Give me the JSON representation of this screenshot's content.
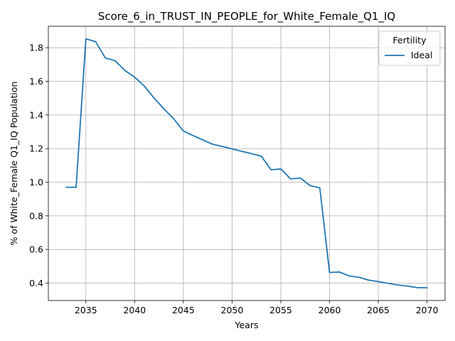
{
  "chart_data": {
    "type": "line",
    "title": "Score_6_in_TRUST_IN_PEOPLE_for_White_Female_Q1_IQ",
    "xlabel": "Years",
    "ylabel": "% of White_Female Q1_IQ Population",
    "xlim": [
      2031.15,
      2071.85
    ],
    "ylim": [
      0.2965,
      1.9275
    ],
    "xticks": [
      2035,
      2040,
      2045,
      2050,
      2055,
      2060,
      2065,
      2070
    ],
    "yticks": [
      0.4,
      0.6,
      0.8,
      1.0,
      1.2,
      1.4,
      1.6,
      1.8
    ],
    "grid": true,
    "legend": {
      "title": "Fertility",
      "placement": "upper right"
    },
    "series": [
      {
        "name": "Ideal",
        "color": "#1f77b4",
        "x": [
          2033,
          2034,
          2035,
          2036,
          2037,
          2038,
          2039,
          2040,
          2041,
          2042,
          2043,
          2044,
          2045,
          2046,
          2047,
          2048,
          2049,
          2050,
          2051,
          2052,
          2053,
          2054,
          2055,
          2056,
          2057,
          2058,
          2059,
          2060,
          2061,
          2062,
          2063,
          2064,
          2065,
          2066,
          2067,
          2068,
          2069,
          2070
        ],
        "y": [
          0.97,
          0.97,
          1.853,
          1.836,
          1.739,
          1.723,
          1.665,
          1.625,
          1.572,
          1.5,
          1.437,
          1.378,
          1.305,
          1.277,
          1.252,
          1.226,
          1.213,
          1.198,
          1.184,
          1.17,
          1.155,
          1.074,
          1.079,
          1.02,
          1.025,
          0.98,
          0.967,
          0.463,
          0.466,
          0.443,
          0.435,
          0.418,
          0.409,
          0.399,
          0.389,
          0.382,
          0.373,
          0.372
        ]
      }
    ]
  }
}
